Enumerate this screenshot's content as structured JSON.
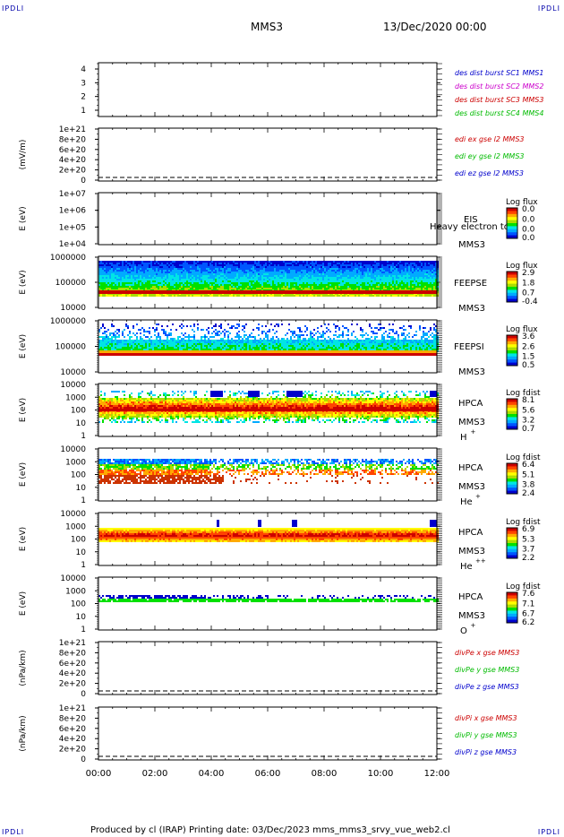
{
  "corner_labels": {
    "tl": "IPDLI",
    "tr": "IPDLI",
    "bl": "IPDLI",
    "br": "IPDLI"
  },
  "header": {
    "mission": "MMS3",
    "date": "13/Dec/2020 00:00"
  },
  "footer": {
    "text": "Produced by cl (IRAP)   Printing date: 03/Dec/2023   mms_mms3_srvy_vue_web2.cl"
  },
  "time_axis": {
    "ticks": [
      "00:00",
      "02:00",
      "04:00",
      "06:00",
      "08:00",
      "10:00",
      "12:00"
    ]
  },
  "colors": {
    "blue": "#0000cc",
    "magenta": "#cc00cc",
    "red": "#cc0000",
    "green": "#00bb00"
  },
  "chart_data": [
    {
      "id": "p1",
      "type": "line",
      "ylabel": "",
      "ylim": [
        0.5,
        4.5
      ],
      "yticks": [
        "4",
        "3",
        "2",
        "1"
      ],
      "series": [
        {
          "name": "des dist burst SC1 MMS1",
          "color": "#0000cc"
        },
        {
          "name": "des dist burst SC2 MMS2",
          "color": "#cc00cc"
        },
        {
          "name": "des dist burst SC3 MMS3",
          "color": "#cc0000"
        },
        {
          "name": "des dist burst SC4 MMS4",
          "color": "#00bb00"
        }
      ]
    },
    {
      "id": "p2",
      "type": "line",
      "ylabel": "(mV/m)",
      "yticks": [
        "1e+21",
        "8e+20",
        "6e+20",
        "4e+20",
        "2e+20",
        "0"
      ],
      "series": [
        {
          "name": "edi ex gse l2 MMS3",
          "color": "#cc0000"
        },
        {
          "name": "edi ey gse l2 MMS3",
          "color": "#00bb00"
        },
        {
          "name": "edi ez gse l2 MMS3",
          "color": "#0000cc"
        }
      ]
    },
    {
      "id": "p3",
      "type": "heatmap",
      "ylabel": "E (eV)",
      "yticks": [
        "1e+07",
        "1e+06",
        "1e+05",
        "1e+04"
      ],
      "inst": "EIS",
      "sc": "MMS3",
      "overlay": "Heavy electron to",
      "cbar_title": "Log flux",
      "cbar_ticks": [
        "0.0",
        "0.0",
        "0.0",
        "0.0"
      ]
    },
    {
      "id": "p4",
      "type": "heatmap",
      "ylabel": "E (eV)",
      "yticks": [
        "1000000",
        "100000",
        "10000"
      ],
      "inst": "FEEPSE",
      "sc": "MMS3",
      "cbar_title": "Log flux",
      "cbar_ticks": [
        "2.9",
        "1.8",
        "0.7",
        "-0.4"
      ]
    },
    {
      "id": "p5",
      "type": "heatmap",
      "ylabel": "E (eV)",
      "yticks": [
        "1000000",
        "100000",
        "10000"
      ],
      "inst": "FEEPSI",
      "sc": "MMS3",
      "cbar_title": "Log flux",
      "cbar_ticks": [
        "3.6",
        "2.6",
        "1.5",
        "0.5"
      ]
    },
    {
      "id": "p6",
      "type": "heatmap",
      "ylabel": "E (eV)",
      "yticks": [
        "10000",
        "1000",
        "100",
        "10",
        "1"
      ],
      "inst": "HPCA",
      "sc": "MMS3",
      "species": "H",
      "species_sup": "+",
      "cbar_title": "Log fdist",
      "cbar_ticks": [
        "8.1",
        "5.6",
        "3.2",
        "0.7"
      ]
    },
    {
      "id": "p7",
      "type": "heatmap",
      "ylabel": "E (eV)",
      "yticks": [
        "10000",
        "1000",
        "100",
        "10",
        "1"
      ],
      "inst": "HPCA",
      "sc": "MMS3",
      "species": "He",
      "species_sup": "+",
      "cbar_title": "Log fdist",
      "cbar_ticks": [
        "6.4",
        "5.1",
        "3.8",
        "2.4"
      ]
    },
    {
      "id": "p8",
      "type": "heatmap",
      "ylabel": "E (eV)",
      "yticks": [
        "10000",
        "1000",
        "100",
        "10",
        "1"
      ],
      "inst": "HPCA",
      "sc": "MMS3",
      "species": "He",
      "species_sup": "++",
      "cbar_title": "Log fdist",
      "cbar_ticks": [
        "6.9",
        "5.3",
        "3.7",
        "2.2"
      ]
    },
    {
      "id": "p9",
      "type": "heatmap",
      "ylabel": "E (eV)",
      "yticks": [
        "10000",
        "1000",
        "100",
        "10",
        "1"
      ],
      "inst": "HPCA",
      "sc": "MMS3",
      "species": "O",
      "species_sup": "+",
      "cbar_title": "Log fdist",
      "cbar_ticks": [
        "7.6",
        "7.1",
        "6.7",
        "6.2"
      ]
    },
    {
      "id": "p10",
      "type": "line",
      "ylabel": "(nPa/km)",
      "yticks": [
        "1e+21",
        "8e+20",
        "6e+20",
        "4e+20",
        "2e+20",
        "0"
      ],
      "series": [
        {
          "name": "divPe x gse MMS3",
          "color": "#cc0000"
        },
        {
          "name": "divPe y gse MMS3",
          "color": "#00bb00"
        },
        {
          "name": "divPe z gse MMS3",
          "color": "#0000cc"
        }
      ]
    },
    {
      "id": "p11",
      "type": "line",
      "ylabel": "(nPa/km)",
      "yticks": [
        "1e+21",
        "8e+20",
        "6e+20",
        "4e+20",
        "2e+20",
        "0"
      ],
      "series": [
        {
          "name": "divPi x gse MMS3",
          "color": "#cc0000"
        },
        {
          "name": "divPi y gse MMS3",
          "color": "#00bb00"
        },
        {
          "name": "divPi z gse MMS3",
          "color": "#0000cc"
        }
      ]
    }
  ]
}
